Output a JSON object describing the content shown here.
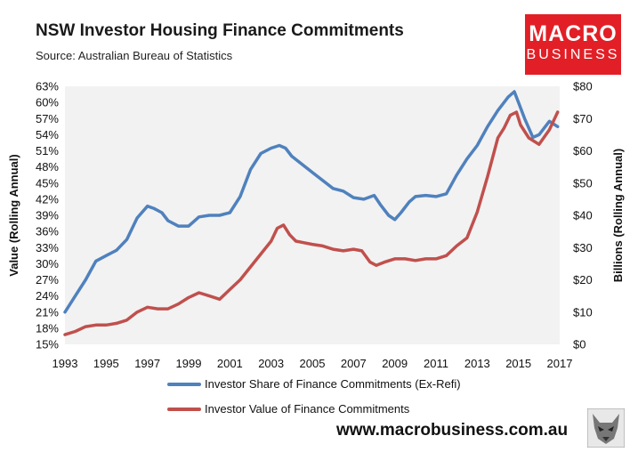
{
  "header": {
    "title": "NSW Investor Housing Finance Commitments",
    "subtitle": "Source: Australian Bureau of Statistics"
  },
  "logo": {
    "line1": "MACRO",
    "line2": "BUSINESS"
  },
  "footer": {
    "website": "www.macrobusiness.com.au"
  },
  "colors": {
    "share": "#4f81bd",
    "value": "#c0504d",
    "plot_bg": "#f2f2f2",
    "logo": "#e21f26"
  },
  "chart_data": {
    "type": "line",
    "title": "NSW Investor Housing Finance Commitments",
    "ylabel_left": "Value (Rolling Annual)",
    "ylabel_right": "Billions (Rolling Annual)",
    "x_ticks": [
      "1993",
      "1995",
      "1997",
      "1999",
      "2001",
      "2003",
      "2005",
      "2007",
      "2009",
      "2011",
      "2013",
      "2015",
      "2017"
    ],
    "y_left_ticks": [
      "15%",
      "18%",
      "21%",
      "24%",
      "27%",
      "30%",
      "33%",
      "36%",
      "39%",
      "42%",
      "45%",
      "48%",
      "51%",
      "54%",
      "57%",
      "60%",
      "63%"
    ],
    "y_right_ticks": [
      "$0",
      "$10",
      "$20",
      "$30",
      "$40",
      "$50",
      "$60",
      "$70",
      "$80"
    ],
    "xlim": [
      1993,
      2017
    ],
    "ylim_left": [
      15,
      63
    ],
    "ylim_right": [
      0,
      80
    ],
    "series": [
      {
        "name": "Investor Share of Finance Commitments (Ex-Refi)",
        "axis": "left",
        "x": [
          1993,
          1993.5,
          1994,
          1994.5,
          1995,
          1995.5,
          1996,
          1996.5,
          1997,
          1997.3,
          1997.7,
          1998,
          1998.5,
          1999,
          1999.5,
          2000,
          2000.5,
          2001,
          2001.5,
          2002,
          2002.5,
          2003,
          2003.4,
          2003.7,
          2004,
          2004.5,
          2005,
          2005.5,
          2006,
          2006.5,
          2007,
          2007.5,
          2008,
          2008.3,
          2008.7,
          2009,
          2009.3,
          2009.7,
          2010,
          2010.5,
          2011,
          2011.5,
          2012,
          2012.5,
          2013,
          2013.5,
          2014,
          2014.5,
          2014.8,
          2015,
          2015.3,
          2015.7,
          2016,
          2016.5,
          2016.9
        ],
        "values": [
          21.0,
          24.0,
          27.0,
          30.5,
          31.5,
          32.5,
          34.5,
          38.5,
          40.7,
          40.3,
          39.5,
          38.0,
          37.0,
          37.0,
          38.7,
          39.0,
          39.0,
          39.5,
          42.5,
          47.5,
          50.5,
          51.5,
          52.0,
          51.5,
          50.0,
          48.5,
          47.0,
          45.5,
          44.0,
          43.5,
          42.3,
          42.0,
          42.7,
          41.0,
          39.0,
          38.2,
          39.5,
          41.5,
          42.5,
          42.7,
          42.5,
          43.0,
          46.5,
          49.5,
          52.0,
          55.5,
          58.5,
          61.0,
          62.0,
          60.0,
          57.0,
          53.5,
          54.0,
          56.5,
          55.5
        ]
      },
      {
        "name": "Investor Value of Finance Commitments",
        "axis": "right",
        "x": [
          1993,
          1993.5,
          1994,
          1994.5,
          1995,
          1995.5,
          1996,
          1996.5,
          1997,
          1997.5,
          1998,
          1998.5,
          1999,
          1999.5,
          2000,
          2000.5,
          2001,
          2001.5,
          2002,
          2002.5,
          2003,
          2003.3,
          2003.6,
          2003.9,
          2004.2,
          2004.6,
          2005,
          2005.5,
          2006,
          2006.5,
          2007,
          2007.4,
          2007.8,
          2008.1,
          2008.5,
          2009,
          2009.5,
          2010,
          2010.5,
          2011,
          2011.5,
          2012,
          2012.5,
          2013,
          2013.5,
          2014,
          2014.3,
          2014.6,
          2014.9,
          2015.1,
          2015.5,
          2016,
          2016.5,
          2016.9
        ],
        "values": [
          3,
          4,
          5.5,
          6,
          6,
          6.5,
          7.5,
          10,
          11.5,
          11,
          11,
          12.5,
          14.5,
          16,
          15,
          14,
          17,
          20,
          24,
          28,
          32,
          36,
          37,
          34,
          32,
          31.5,
          31,
          30.5,
          29.5,
          29,
          29.5,
          29,
          25.5,
          24.5,
          25.5,
          26.5,
          26.5,
          26,
          26.5,
          26.5,
          27.5,
          30.5,
          33,
          41,
          52,
          64,
          67,
          71,
          72,
          68,
          64,
          62,
          66.5,
          72
        ]
      }
    ]
  }
}
